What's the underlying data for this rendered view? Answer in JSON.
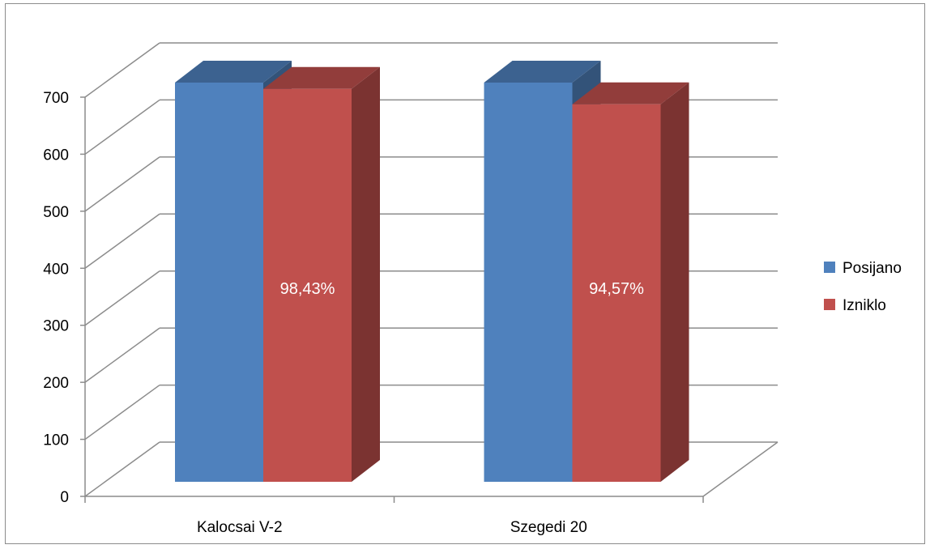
{
  "chart_data": {
    "type": "bar",
    "style": "3d-clustered-column",
    "categories": [
      "Kalocsai V-2",
      "Szegedi 20"
    ],
    "series": [
      {
        "name": "Posijano",
        "values": [
          700,
          700
        ],
        "color": "#4F81BD"
      },
      {
        "name": "Izniklo",
        "values": [
          689,
          662
        ],
        "color": "#C0504D",
        "data_labels": [
          "98,43%",
          "94,57%"
        ]
      }
    ],
    "ylim": [
      0,
      700
    ],
    "yticks": [
      "0",
      "100",
      "200",
      "300",
      "400",
      "500",
      "600",
      "700"
    ],
    "grid": true,
    "legend": "right"
  }
}
